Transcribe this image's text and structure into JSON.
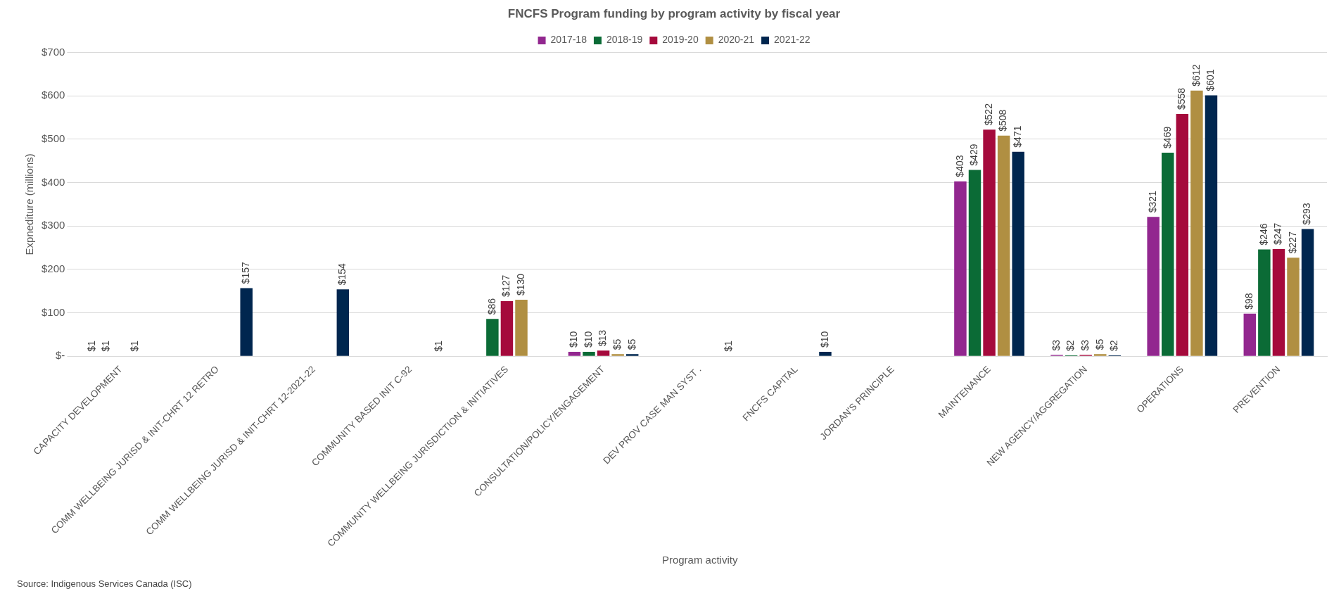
{
  "chart_data": {
    "type": "bar",
    "title": "FNCFS Program funding by program activity by fiscal year",
    "xlabel": "Program activity",
    "ylabel": "Expnediture (millions)",
    "categories": [
      "CAPACITY DEVELOPMENT",
      "COMM WELLBEING JURISD & INIT-CHRT 12 RETRO",
      "COMM WELLBEING JURISD & INIT-CHRT 12-2021-22",
      "COMMUNITY BASED INIT C-92",
      "COMMUNITY WELLBEING JURISDICTION & INITIATIVES",
      "CONSULTATION/POLICY/ENGAGEMENT",
      "DEV PROV CASE MAN SYST .",
      "FNCFS CAPITAL",
      "JORDAN'S PRINCIPLE",
      "MAINTENANCE",
      "NEW AGENCY/AGGREGATION",
      "OPERATIONS",
      "PREVENTION"
    ],
    "series": [
      {
        "name": "2017-18",
        "color": "#92278f",
        "values": [
          1,
          null,
          null,
          null,
          null,
          10,
          null,
          null,
          null,
          403,
          3,
          321,
          98
        ],
        "value_labels": [
          "$1",
          null,
          null,
          null,
          null,
          "$10",
          null,
          null,
          null,
          "$403",
          "$3",
          "$321",
          "$98"
        ]
      },
      {
        "name": "2018-19",
        "color": "#0b6b36",
        "values": [
          1,
          null,
          null,
          null,
          86,
          10,
          null,
          null,
          null,
          429,
          2,
          469,
          246
        ],
        "value_labels": [
          "$1",
          null,
          null,
          null,
          "$86",
          "$10",
          null,
          null,
          null,
          "$429",
          "$2",
          "$469",
          "$246"
        ]
      },
      {
        "name": "2019-20",
        "color": "#a50a3c",
        "values": [
          null,
          null,
          null,
          null,
          127,
          13,
          null,
          null,
          null,
          522,
          3,
          558,
          247
        ],
        "value_labels": [
          null,
          null,
          null,
          null,
          "$127",
          "$13",
          null,
          null,
          null,
          "$522",
          "$3",
          "$558",
          "$247"
        ]
      },
      {
        "name": "2020-21",
        "color": "#b08f42",
        "values": [
          1,
          null,
          null,
          null,
          130,
          5,
          null,
          null,
          null,
          508,
          5,
          612,
          227
        ],
        "value_labels": [
          "$1",
          null,
          null,
          null,
          "$130",
          "$5",
          null,
          null,
          null,
          "$508",
          "$5",
          "$612",
          "$227"
        ]
      },
      {
        "name": "2021-22",
        "color": "#00264f",
        "values": [
          null,
          157,
          154,
          1,
          null,
          5,
          1,
          10,
          null,
          471,
          2,
          601,
          293
        ],
        "value_labels": [
          null,
          "$157",
          "$154",
          "$1",
          null,
          "$5",
          "$1",
          "$10",
          null,
          "$471",
          "$2",
          "$601",
          "$293"
        ]
      }
    ],
    "ylim": [
      0,
      700
    ],
    "yticks": [
      {
        "value": 0,
        "label": "$-"
      },
      {
        "value": 100,
        "label": "$100"
      },
      {
        "value": 200,
        "label": "$200"
      },
      {
        "value": 300,
        "label": "$300"
      },
      {
        "value": 400,
        "label": "$400"
      },
      {
        "value": 500,
        "label": "$500"
      },
      {
        "value": 600,
        "label": "$600"
      },
      {
        "value": 700,
        "label": "$700"
      }
    ],
    "grid": "y",
    "legend": "top",
    "annotations": [
      "Source: Indigenous Services Canada (ISC)"
    ]
  }
}
